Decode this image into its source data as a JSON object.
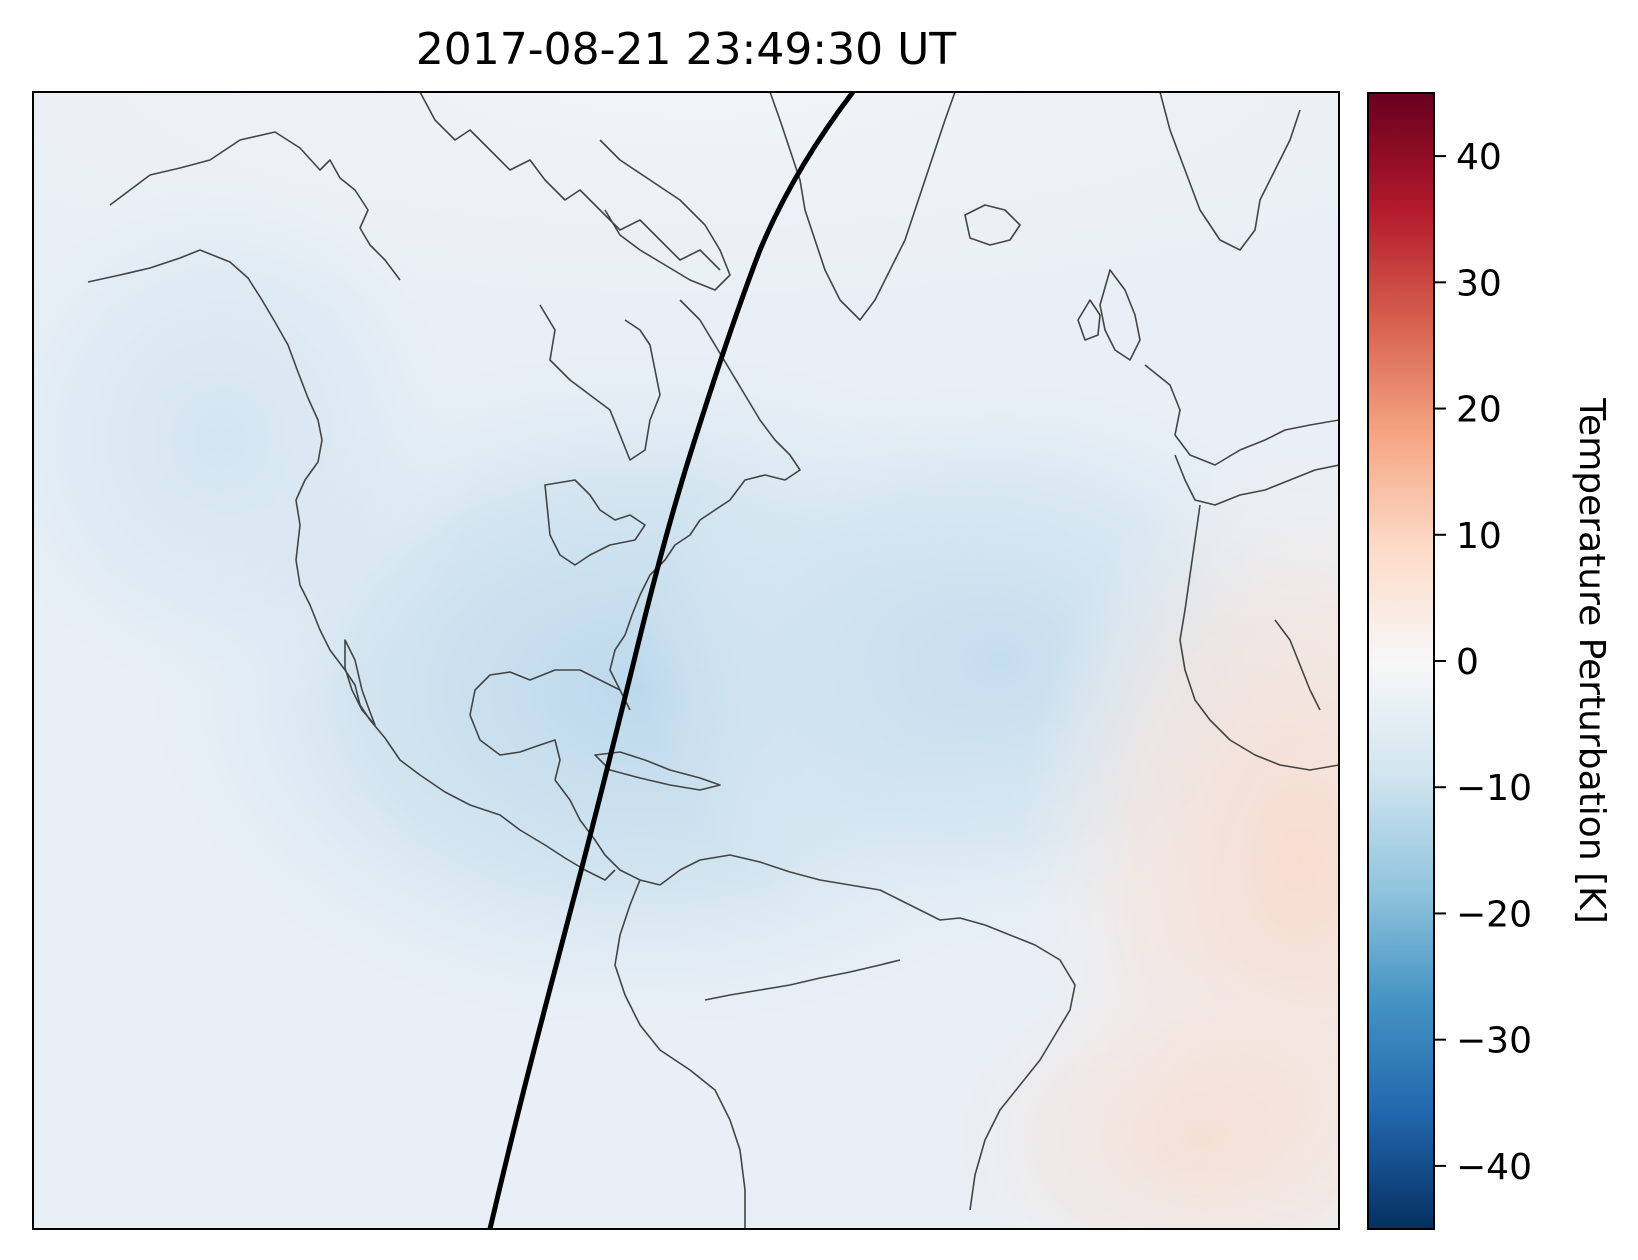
{
  "title": "2017-08-21 23:49:30 UT",
  "colorbar": {
    "label": "Temperature Perturbation [K]",
    "min": -45,
    "max": 45,
    "ticks": [
      40,
      30,
      20,
      10,
      0,
      -10,
      -20,
      -30,
      -40
    ],
    "tick_labels": [
      "40",
      "30",
      "20",
      "10",
      "0",
      "−10",
      "−20",
      "−30",
      "−40"
    ],
    "colormap": "RdBu_r",
    "colors": [
      "#053061",
      "#2166ac",
      "#4393c3",
      "#92c5de",
      "#d1e5f0",
      "#f7f7f7",
      "#fddbc7",
      "#f4a582",
      "#d6604d",
      "#b2182b",
      "#67001f"
    ]
  },
  "map": {
    "region": "North Atlantic, North America, Caribbean, northern South America, western Europe and Africa",
    "field_colors": {
      "background": "#e9f0f6",
      "negative_center": "#c6dfee",
      "positive_east": "#f8e4da"
    },
    "path_line_color": "#000000",
    "coastline_color": "#444444"
  }
}
